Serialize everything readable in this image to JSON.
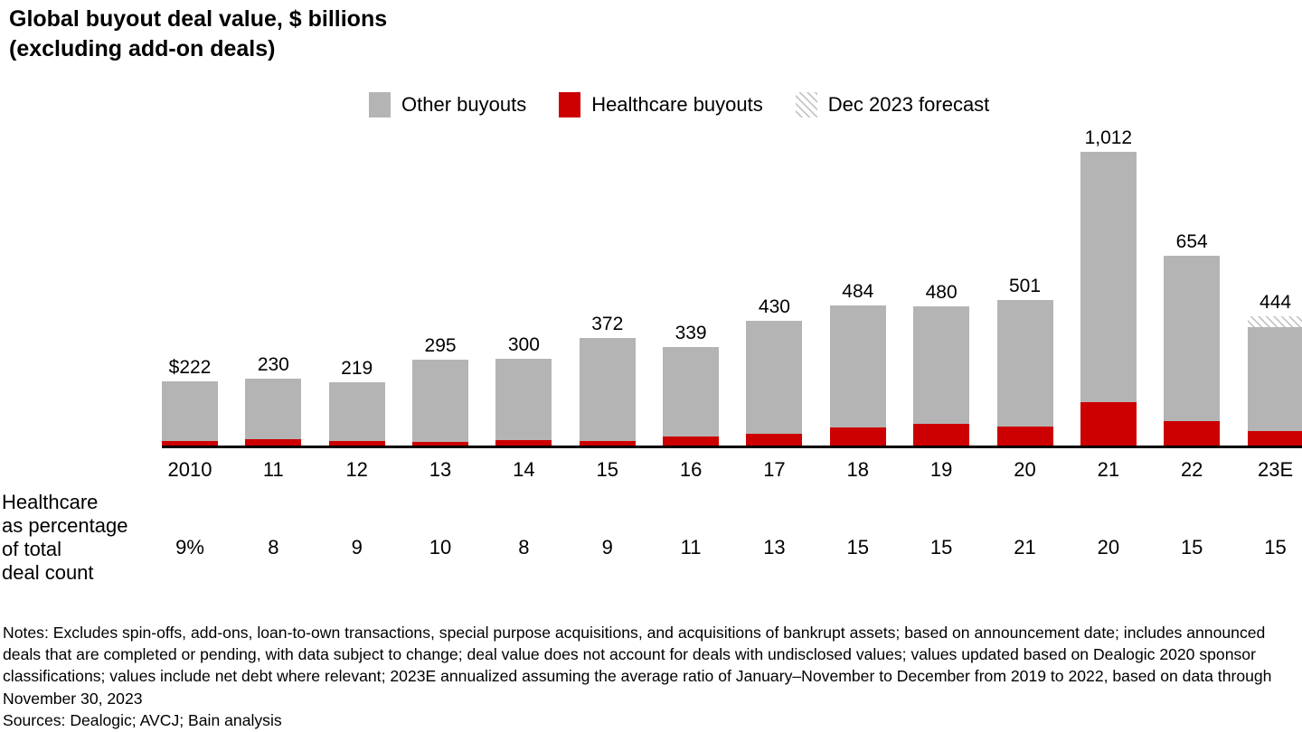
{
  "title": {
    "line1": "Global buyout deal value, $ billions",
    "line2": "(excluding add-on deals)"
  },
  "legend": [
    {
      "label": "Other buyouts",
      "swatch": "gray"
    },
    {
      "label": "Healthcare buyouts",
      "swatch": "red"
    },
    {
      "label": "Dec 2023 forecast",
      "swatch": "hatch"
    }
  ],
  "colors": {
    "other": "#b4b4b4",
    "healthcare": "#cc0000",
    "hatch_line": "#c6c6c6",
    "axis": "#000000"
  },
  "row_label": {
    "lines": [
      "Healthcare",
      "as percentage",
      "of total",
      "deal count"
    ]
  },
  "chart_data": {
    "type": "bar",
    "stacked": true,
    "title": "Global buyout deal value, $ billions (excluding add-on deals)",
    "categories": [
      "2010",
      "11",
      "12",
      "13",
      "14",
      "15",
      "16",
      "17",
      "18",
      "19",
      "20",
      "21",
      "22",
      "23E"
    ],
    "totals": [
      222,
      230,
      219,
      295,
      300,
      372,
      339,
      430,
      484,
      480,
      501,
      1012,
      654,
      444
    ],
    "total_labels": [
      "$222",
      "230",
      "219",
      "295",
      "300",
      "372",
      "339",
      "430",
      "484",
      "480",
      "501",
      "1,012",
      "654",
      "444"
    ],
    "series": [
      {
        "name": "Healthcare buyouts",
        "color": "#cc0000",
        "values": [
          15,
          21,
          15,
          13,
          20,
          17,
          30,
          40,
          62,
          76,
          64,
          150,
          84,
          49
        ]
      },
      {
        "name": "Other buyouts",
        "color": "#b4b4b4",
        "values": [
          207,
          209,
          204,
          282,
          280,
          355,
          309,
          390,
          422,
          404,
          437,
          862,
          570,
          358
        ]
      },
      {
        "name": "Dec 2023 forecast",
        "style": "hatch",
        "values": [
          0,
          0,
          0,
          0,
          0,
          0,
          0,
          0,
          0,
          0,
          0,
          0,
          0,
          37
        ]
      }
    ],
    "healthcare_pct_of_total_deal_count": [
      "9%",
      "8",
      "9",
      "10",
      "8",
      "9",
      "11",
      "13",
      "15",
      "15",
      "21",
      "20",
      "15",
      "15"
    ],
    "ylim": [
      0,
      1050
    ],
    "grid": false,
    "legend_position": "top",
    "estimation_note": "Healthcare and forecast segment values estimated from bar heights; totals are labeled on chart"
  },
  "notes": "Notes: Excludes spin-offs, add-ons, loan-to-own transactions, special purpose acquisitions, and acquisitions of bankrupt assets; based on announcement date; includes announced deals that are completed or pending, with data subject to change; deal value does not account for deals with undisclosed values; values updated based on Dealogic 2020 sponsor classifications; values include net debt where relevant; 2023E annualized assuming the average ratio of January–November to December from 2019 to 2022, based on data through November 30, 2023",
  "sources": "Sources: Dealogic; AVCJ; Bain analysis"
}
